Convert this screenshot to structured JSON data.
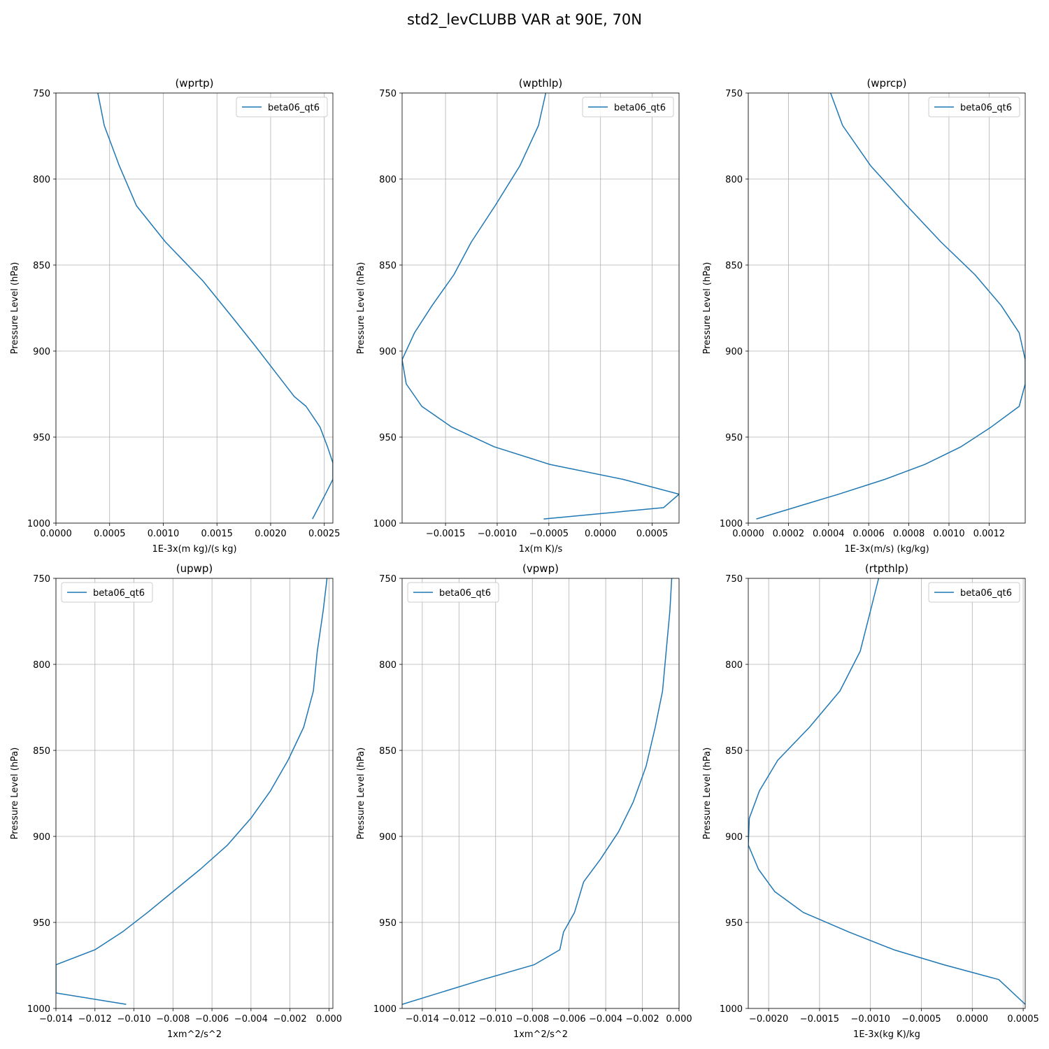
{
  "figure": {
    "title": "std2_levCLUBB VAR at 90E, 70N"
  },
  "chart_data": [
    {
      "type": "line",
      "title": "(wprtp)",
      "xlabel": "1E-3x(m kg)/(s kg)",
      "ylabel": "Pressure Level (hPa)",
      "xlim": [
        0,
        0.00258
      ],
      "ylim": [
        1000,
        750
      ],
      "xticks": [
        0,
        0.0005,
        0.001,
        0.0015,
        0.002,
        0.0025
      ],
      "xtick_labels": [
        "0.0000",
        "0.0005",
        "0.0010",
        "0.0015",
        "0.0020",
        "0.0025"
      ],
      "yticks": [
        750,
        800,
        850,
        900,
        950,
        1000
      ],
      "ytick_labels": [
        "750",
        "800",
        "850",
        "900",
        "950",
        "1000"
      ],
      "grid": true,
      "legend_position": "upper-right",
      "series": [
        {
          "name": "beta06_qt6",
          "x": [
            0.00039,
            0.00045,
            0.00059,
            0.00075,
            0.00102,
            0.00137,
            0.00164,
            0.00186,
            0.00206,
            0.00222,
            0.00233,
            0.00246,
            0.00253,
            0.00258,
            0.00258,
            0.00251,
            0.00239
          ],
          "y": [
            750,
            768.9,
            792.3,
            815.5,
            836.6,
            859.3,
            880.1,
            897.3,
            913.5,
            926.4,
            932.1,
            944.2,
            955.6,
            965.0,
            974.6,
            983.2,
            997.6
          ]
        }
      ]
    },
    {
      "type": "line",
      "title": "(wpthlp)",
      "xlabel": "1x(m K)/s",
      "ylabel": "Pressure Level (hPa)",
      "xlim": [
        -0.00192,
        0.00076
      ],
      "ylim": [
        1000,
        750
      ],
      "xticks": [
        -0.0015,
        -0.001,
        -0.0005,
        0,
        0.0005
      ],
      "xtick_labels": [
        "−0.0015",
        "−0.0010",
        "−0.0005",
        "0.0000",
        "0.0005"
      ],
      "yticks": [
        750,
        800,
        850,
        900,
        950,
        1000
      ],
      "ytick_labels": [
        "750",
        "800",
        "850",
        "900",
        "950",
        "1000"
      ],
      "grid": true,
      "legend_position": "upper-right",
      "series": [
        {
          "name": "beta06_qt6",
          "x": [
            -0.00053,
            -0.0006,
            -0.00078,
            -0.00102,
            -0.00125,
            -0.00142,
            -0.00163,
            -0.0018,
            -0.00192,
            -0.00188,
            -0.00173,
            -0.00144,
            -0.00103,
            -0.00049,
            0.00022,
            0.00076,
            0.00061,
            -0.00055
          ],
          "y": [
            750,
            768.9,
            792.3,
            815.5,
            836.6,
            855.7,
            873.5,
            889.4,
            905.0,
            919.1,
            932.1,
            944.2,
            955.6,
            965.9,
            974.6,
            983.2,
            991.0,
            997.6
          ]
        }
      ]
    },
    {
      "type": "line",
      "title": "(wprcp)",
      "xlabel": "1E-3x(m/s) (kg/kg)",
      "ylabel": "Pressure Level (hPa)",
      "xlim": [
        0,
        0.00138
      ],
      "ylim": [
        1000,
        750
      ],
      "xticks": [
        0,
        0.0002,
        0.0004,
        0.0006,
        0.0008,
        0.001,
        0.0012
      ],
      "xtick_labels": [
        "0.0000",
        "0.0002",
        "0.0004",
        "0.0006",
        "0.0008",
        "0.0010",
        "0.0012"
      ],
      "yticks": [
        750,
        800,
        850,
        900,
        950,
        1000
      ],
      "ytick_labels": [
        "750",
        "800",
        "850",
        "900",
        "950",
        "1000"
      ],
      "grid": true,
      "legend_position": "upper-right",
      "series": [
        {
          "name": "beta06_qt6",
          "x": [
            0.00041,
            0.00047,
            0.00061,
            0.00079,
            0.00096,
            0.00113,
            0.00126,
            0.00135,
            0.00138,
            0.00138,
            0.00135,
            0.00121,
            0.00106,
            0.00088,
            0.00068,
            0.00045,
            4e-05
          ],
          "y": [
            750,
            768.9,
            792.3,
            815.5,
            836.6,
            855.7,
            873.5,
            889.4,
            905.0,
            919.1,
            932.1,
            944.2,
            955.6,
            965.9,
            974.6,
            983.2,
            997.6
          ]
        }
      ]
    },
    {
      "type": "line",
      "title": "(upwp)",
      "xlabel": "1xm^2/s^2",
      "ylabel": "Pressure Level (hPa)",
      "xlim": [
        -0.014,
        0.0002
      ],
      "ylim": [
        1000,
        750
      ],
      "xticks": [
        -0.014,
        -0.012,
        -0.01,
        -0.008,
        -0.006,
        -0.004,
        -0.002,
        0
      ],
      "xtick_labels": [
        "−0.014",
        "−0.012",
        "−0.010",
        "−0.008",
        "−0.006",
        "−0.004",
        "−0.002",
        "0.000"
      ],
      "yticks": [
        750,
        800,
        850,
        900,
        950,
        1000
      ],
      "ytick_labels": [
        "750",
        "800",
        "850",
        "900",
        "950",
        "1000"
      ],
      "grid": true,
      "legend_position": "upper-left",
      "series": [
        {
          "name": "beta06_qt6",
          "x": [
            -0.0001,
            -0.0003,
            -0.0006,
            -0.0008,
            -0.0013,
            -0.0021,
            -0.003,
            -0.004,
            -0.0052,
            -0.0066,
            -0.008,
            -0.0093,
            -0.0106,
            -0.012,
            -0.014,
            -0.014,
            -0.0104
          ],
          "y": [
            750,
            768.9,
            792.3,
            815.5,
            836.6,
            855.7,
            873.5,
            889.4,
            905.0,
            919.1,
            932.1,
            944.2,
            955.6,
            965.9,
            974.6,
            991.0,
            997.6
          ]
        }
      ]
    },
    {
      "type": "line",
      "title": "(vpwp)",
      "xlabel": "1xm^2/s^2",
      "ylabel": "Pressure Level (hPa)",
      "xlim": [
        -0.0151,
        0
      ],
      "ylim": [
        1000,
        750
      ],
      "xticks": [
        -0.014,
        -0.012,
        -0.01,
        -0.008,
        -0.006,
        -0.004,
        -0.002,
        0
      ],
      "xtick_labels": [
        "−0.014",
        "−0.012",
        "−0.010",
        "−0.008",
        "−0.006",
        "−0.004",
        "−0.002",
        "0.000"
      ],
      "yticks": [
        750,
        800,
        850,
        900,
        950,
        1000
      ],
      "ytick_labels": [
        "750",
        "800",
        "850",
        "900",
        "950",
        "1000"
      ],
      "grid": true,
      "legend_position": "upper-left",
      "series": [
        {
          "name": "beta06_qt6",
          "x": [
            -0.0004,
            -0.0005,
            -0.0007,
            -0.0009,
            -0.0013,
            -0.0018,
            -0.0025,
            -0.0033,
            -0.0043,
            -0.0052,
            -0.0057,
            -0.0063,
            -0.0065,
            -0.0079,
            -0.0107,
            -0.0151
          ],
          "y": [
            750,
            768.9,
            792.3,
            815.5,
            836.6,
            859.3,
            880.1,
            897.3,
            913.5,
            926.4,
            944.2,
            955.6,
            965.9,
            974.6,
            983.2,
            997.6
          ]
        }
      ]
    },
    {
      "type": "line",
      "title": "(rtpthlp)",
      "xlabel": "1E-3x(kg K)/kg",
      "ylabel": "Pressure Level (hPa)",
      "xlim": [
        -0.0022,
        0.00052
      ],
      "ylim": [
        1000,
        750
      ],
      "xticks": [
        -0.002,
        -0.0015,
        -0.001,
        -0.0005,
        0,
        0.0005
      ],
      "xtick_labels": [
        "−0.0020",
        "−0.0015",
        "−0.0010",
        "−0.0005",
        "0.0000",
        "0.0005"
      ],
      "yticks": [
        750,
        800,
        850,
        900,
        950,
        1000
      ],
      "ytick_labels": [
        "750",
        "800",
        "850",
        "900",
        "950",
        "1000"
      ],
      "grid": true,
      "legend_position": "upper-right",
      "series": [
        {
          "name": "beta06_qt6",
          "x": [
            -0.00092,
            -0.001,
            -0.0011,
            -0.0013,
            -0.0016,
            -0.00191,
            -0.00209,
            -0.00219,
            -0.0022,
            -0.0021,
            -0.00194,
            -0.00166,
            -0.00121,
            -0.00077,
            -0.00028,
            0.00026,
            0.00052
          ],
          "y": [
            750,
            768.9,
            792.3,
            815.5,
            836.6,
            855.7,
            873.5,
            889.4,
            905.0,
            919.1,
            932.1,
            944.2,
            955.6,
            965.9,
            974.6,
            983.2,
            997.6
          ]
        }
      ]
    }
  ]
}
